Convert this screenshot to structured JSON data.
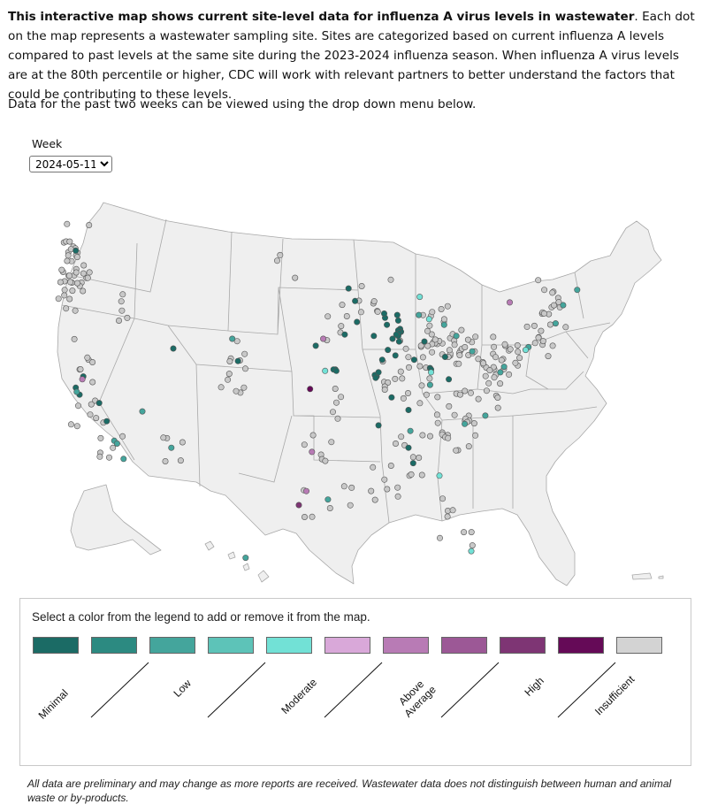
{
  "intro": {
    "bold": "This interactive map shows current site-level data for influenza A virus levels in wastewater",
    "rest": ". Each dot on the map represents a wastewater sampling site. Sites are categorized based on current influenza A levels compared to past levels at the same site during the 2023-2024 influenza season. When influenza A virus levels are at the 80th percentile or higher, CDC will work with relevant partners to better understand the factors that could be contributing to these levels.",
    "dropdown_note": "Data for the past two weeks can be viewed using the drop down menu below."
  },
  "week": {
    "label": "Week",
    "selected": "2024-05-11"
  },
  "legend": {
    "instruction": "Select a color from the legend to add or remove it from the map.",
    "swatches": [
      {
        "color": "#1b6b65",
        "label": "Minimal"
      },
      {
        "color": "#2c8a81",
        "label": ""
      },
      {
        "color": "#44a59c",
        "label": "Low"
      },
      {
        "color": "#5dc3b8",
        "label": ""
      },
      {
        "color": "#72e1d6",
        "label": "Moderate"
      },
      {
        "color": "#d9a8d9",
        "label": ""
      },
      {
        "color": "#b87bb5",
        "label": "Above Average"
      },
      {
        "color": "#9c5896",
        "label": ""
      },
      {
        "color": "#7e3574",
        "label": "High"
      },
      {
        "color": "#650a57",
        "label": ""
      },
      {
        "color": "#d3d3d3",
        "label": "Insufficient"
      }
    ],
    "label_lines": {
      "above_1": "Above",
      "above_2": "Average"
    }
  },
  "footnote": "All data are preliminary and may change as more reports are received. Wastewater data does not distinguish between human and animal waste or by-products.",
  "colors": {
    "land": "#efefef",
    "border": "#a8a8a8",
    "insufficient": "#c8c8c8",
    "dot_outline": "#555555"
  },
  "map_sites": {
    "minimal": [
      [
        44.9,
        -93.2
      ],
      [
        42.0,
        -87.7
      ],
      [
        41.8,
        -87.6
      ],
      [
        41.9,
        -87.9
      ],
      [
        41.7,
        -87.8
      ],
      [
        41.5,
        -87.9
      ],
      [
        41.6,
        -88.1
      ],
      [
        41.3,
        -88.5
      ],
      [
        41.1,
        -87.8
      ],
      [
        40.5,
        -89.0
      ],
      [
        39.8,
        -89.6
      ],
      [
        41.5,
        -90.5
      ],
      [
        42.3,
        -89.1
      ],
      [
        42.8,
        -89.3
      ],
      [
        43.1,
        -89.4
      ],
      [
        43.0,
        -88.0
      ],
      [
        42.6,
        -87.9
      ],
      [
        40.1,
        -88.2
      ],
      [
        39.1,
        -94.6
      ],
      [
        39.1,
        -94.8
      ],
      [
        39.0,
        -94.5
      ],
      [
        38.6,
        -90.2
      ],
      [
        38.7,
        -90.4
      ],
      [
        38.5,
        -90.3
      ],
      [
        38.9,
        -90.0
      ],
      [
        37.1,
        -88.6
      ],
      [
        38.4,
        -82.5
      ],
      [
        39.2,
        -84.5
      ],
      [
        39.1,
        -84.4
      ],
      [
        36.2,
        -86.8
      ],
      [
        35.1,
        -90.0
      ],
      [
        33.5,
        -86.8
      ],
      [
        32.4,
        -86.3
      ],
      [
        40.0,
        -82.9
      ],
      [
        39.8,
        -86.2
      ],
      [
        41.1,
        -85.1
      ],
      [
        47.6,
        -122.3
      ],
      [
        38.6,
        -121.5
      ],
      [
        37.8,
        -122.3
      ],
      [
        37.3,
        -121.9
      ],
      [
        36.7,
        -119.8
      ],
      [
        35.4,
        -119.0
      ],
      [
        40.6,
        -111.9
      ],
      [
        39.7,
        -105.0
      ],
      [
        44.0,
        -92.5
      ],
      [
        42.5,
        -92.3
      ],
      [
        41.6,
        -93.6
      ],
      [
        40.8,
        -96.7
      ]
    ],
    "low": [
      [
        39.3,
        -76.6
      ],
      [
        38.9,
        -77.0
      ],
      [
        40.7,
        -74.0
      ],
      [
        42.4,
        -71.1
      ],
      [
        43.7,
        -70.3
      ],
      [
        44.8,
        -68.8
      ],
      [
        40.4,
        -80.0
      ],
      [
        41.5,
        -81.7
      ],
      [
        37.5,
        -122.2
      ],
      [
        34.0,
        -118.2
      ],
      [
        33.8,
        -117.9
      ],
      [
        32.7,
        -117.2
      ],
      [
        21.3,
        -157.9
      ],
      [
        29.8,
        -95.4
      ],
      [
        33.5,
        -112.1
      ],
      [
        42.3,
        -83.0
      ],
      [
        43.0,
        -85.7
      ],
      [
        38.0,
        -84.5
      ],
      [
        36.1,
        -115.2
      ],
      [
        41.3,
        -105.6
      ],
      [
        34.7,
        -86.6
      ],
      [
        35.8,
        -78.6
      ],
      [
        35.2,
        -80.8
      ]
    ],
    "moderate": [
      [
        38.9,
        -84.4
      ],
      [
        40.5,
        -74.3
      ],
      [
        44.3,
        -85.6
      ],
      [
        39.0,
        -95.7
      ],
      [
        42.7,
        -84.6
      ],
      [
        31.5,
        -83.5
      ],
      [
        26.1,
        -80.1
      ]
    ],
    "above_average": [
      [
        38.4,
        -121.6
      ],
      [
        41.3,
        -95.9
      ],
      [
        30.4,
        -97.7
      ],
      [
        33.2,
        -97.1
      ],
      [
        43.9,
        -76.0
      ]
    ],
    "high": [
      [
        29.4,
        -98.5
      ]
    ],
    "very_high": [
      [
        37.7,
        -97.3
      ]
    ]
  }
}
